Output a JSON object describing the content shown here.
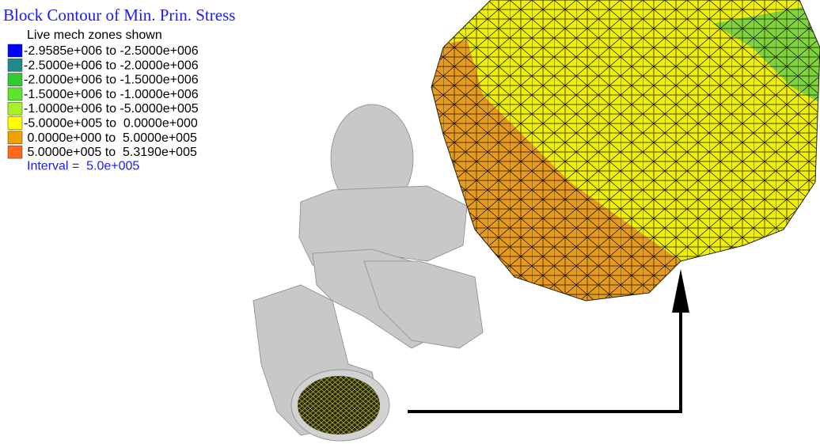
{
  "header": {
    "title": "Block Contour of Min. Prin. Stress",
    "subtitle": "Live mech zones shown"
  },
  "legend": {
    "items": [
      {
        "label": "-2.9585e+006 to -2.5000e+006",
        "color": "#0000ff"
      },
      {
        "label": "-2.5000e+006 to -2.0000e+006",
        "color": "#1f8a8a"
      },
      {
        "label": "-2.0000e+006 to -1.5000e+006",
        "color": "#2ecc2e"
      },
      {
        "label": "-1.5000e+006 to -1.0000e+006",
        "color": "#5ce62b"
      },
      {
        "label": "-1.0000e+006 to -5.0000e+005",
        "color": "#a8f02a"
      },
      {
        "label": "-5.0000e+005 to  0.0000e+000",
        "color": "#ffff00"
      },
      {
        "label": " 0.0000e+000 to  5.0000e+005",
        "color": "#f0a000"
      },
      {
        "label": " 5.0000e+005 to  5.3190e+005",
        "color": "#ff6a1a"
      }
    ],
    "interval": "Interval =  5.0e+005"
  }
}
